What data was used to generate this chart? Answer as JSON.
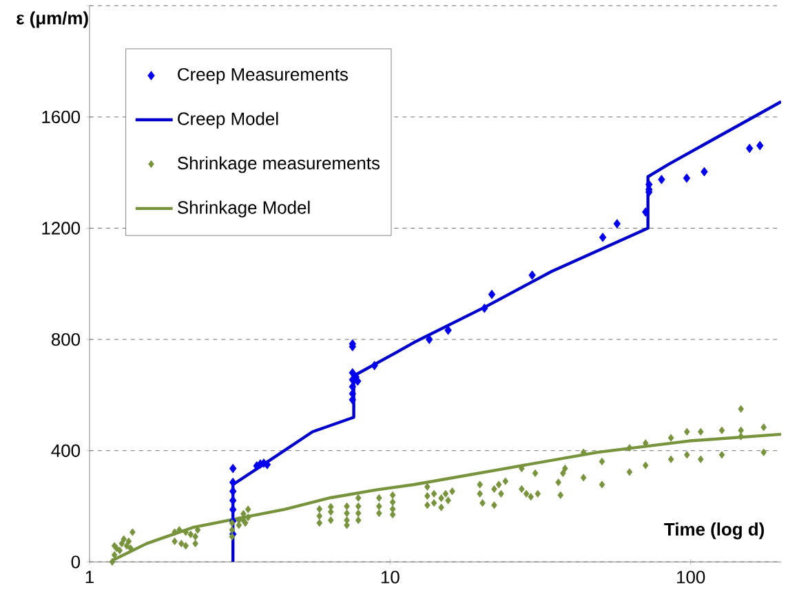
{
  "chart_data": {
    "type": "scatter",
    "xlabel": "Time (log d)",
    "ylabel": "ε (μm/m)",
    "log": "x",
    "xlim": [
      1,
      200
    ],
    "xticks": [
      1,
      10,
      100
    ],
    "ylim": [
      0,
      2000
    ],
    "yticks": [
      0,
      400,
      800,
      1200,
      1600,
      {
        "value": 2000,
        "label": null
      }
    ],
    "grid": "y",
    "legend": "top left",
    "series": [
      {
        "name": "Creep Measurements",
        "marker": "diamond",
        "color": "#0000ee",
        "x": [
          3.0,
          3.0,
          3.0,
          3.0,
          3.0,
          3.0,
          3.0,
          3.6,
          3.7,
          3.8,
          3.9,
          7.5,
          7.5,
          7.5,
          7.5,
          7.5,
          7.5,
          7.5,
          7.7,
          7.8,
          8.87,
          13.5,
          15.6,
          20.6,
          21.8,
          29.7,
          51,
          56.9,
          70.8,
          72.7,
          72.7,
          72.7,
          80,
          97,
          111,
          157,
          170
        ],
        "values": [
          336,
          286,
          254,
          221,
          188,
          147,
          100,
          345,
          352,
          355,
          350,
          784,
          774,
          680,
          655,
          630,
          605,
          583,
          665,
          650,
          706,
          800,
          833,
          912,
          962,
          1031,
          1167,
          1216,
          1258,
          1357,
          1339,
          1330,
          1375,
          1380,
          1403,
          1487,
          1497
        ]
      },
      {
        "name": "Creep Model",
        "type": "line",
        "color": "#0000cc",
        "x": [
          3.0,
          3.0,
          3.81,
          5.52,
          7.57,
          7.57,
          10.4,
          12,
          21,
          34.4,
          72.1,
          72.1,
          84.5,
          200
        ],
        "values": [
          0,
          278,
          352,
          468,
          520,
          669,
          751,
          789,
          920,
          1044,
          1200,
          1385,
          1430,
          1655
        ]
      },
      {
        "name": "Shrinkage measurements",
        "marker": "diamond",
        "color": "#77933c",
        "x": [
          1.19,
          1.21,
          1.23,
          1.26,
          1.21,
          1.28,
          1.3,
          1.33,
          1.35,
          1.39,
          1.37,
          1.92,
          1.92,
          1.99,
          2.02,
          2.09,
          2.09,
          2.17,
          2.25,
          2.25,
          2.29,
          2.98,
          2.98,
          2.98,
          3.14,
          3.14,
          3.25,
          3.25,
          3.37,
          3.37,
          3.3,
          5.82,
          5.82,
          5.82,
          6.35,
          6.35,
          6.35,
          7.18,
          7.18,
          7.18,
          7.18,
          7.84,
          7.84,
          7.84,
          7.84,
          9.19,
          9.19,
          9.19,
          10.2,
          10.2,
          10.2,
          10.2,
          13.3,
          13.3,
          14.0,
          14.8,
          15.6,
          16.1,
          13.3,
          14.0,
          14.8,
          15.3,
          19.9,
          19.9,
          20.3,
          22.2,
          22.2,
          23.0,
          23.4,
          24.2,
          27.4,
          27.4,
          28.4,
          30.4,
          31.0,
          29.4,
          36.3,
          36.9,
          37.6,
          38.2,
          44.0,
          44.0,
          50.7,
          50.7,
          62.6,
          62.6,
          70.8,
          70.8,
          86.0,
          86.0,
          97.2,
          97.2,
          108,
          108,
          127,
          127,
          147,
          147,
          147,
          175,
          175
        ],
        "values": [
          0,
          25,
          49,
          41,
          58,
          66,
          82,
          58,
          74,
          107,
          49,
          107,
          74,
          115,
          66,
          107,
          58,
          99,
          91,
          66,
          115,
          140,
          115,
          91,
          150,
          132,
          173,
          150,
          189,
          160,
          140,
          190,
          165,
          140,
          198,
          180,
          150,
          200,
          175,
          150,
          132,
          230,
          200,
          175,
          150,
          230,
          200,
          175,
          240,
          215,
          190,
          170,
          270,
          237,
          212,
          196,
          221,
          254,
          204,
          245,
          229,
          245,
          278,
          245,
          212,
          262,
          204,
          278,
          245,
          290,
          336,
          262,
          245,
          319,
          245,
          234,
          286,
          240,
          319,
          336,
          394,
          303,
          361,
          278,
          410,
          323,
          427,
          347,
          446,
          369,
          468,
          385,
          468,
          369,
          473,
          385,
          550,
          473,
          451,
          484,
          394
        ]
      },
      {
        "name": "Shrinkage Model",
        "type": "line",
        "color": "#77933c",
        "x": [
          1.19,
          1.55,
          2.21,
          3.25,
          4.47,
          6.35,
          9.0,
          12,
          24.2,
          48.9,
          98.9,
          200
        ],
        "values": [
          5,
          66,
          124,
          160,
          189,
          231,
          259,
          278,
          336,
          394,
          435,
          459
        ]
      }
    ]
  }
}
